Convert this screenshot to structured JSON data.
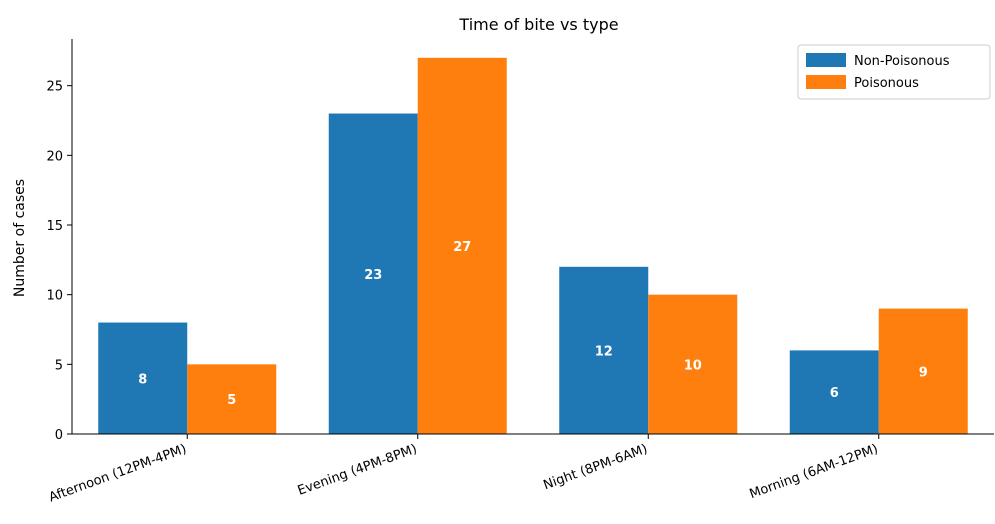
{
  "chart_data": {
    "type": "bar",
    "title": "Time of bite vs type",
    "xlabel": "",
    "ylabel": "Number of cases",
    "categories": [
      "Afternoon (12PM-4PM)",
      "Evening (4PM-8PM)",
      "Night (8PM-6AM)",
      "Morning (6AM-12PM)"
    ],
    "series": [
      {
        "name": "Non-Poisonous",
        "values": [
          8,
          23,
          12,
          6
        ],
        "color": "#1f77b4"
      },
      {
        "name": "Poisonous",
        "values": [
          5,
          27,
          10,
          9
        ],
        "color": "#ff7f0e"
      }
    ],
    "ylim": [
      0,
      28.35
    ],
    "yticks": [
      0,
      5,
      10,
      15,
      20,
      25
    ],
    "grid": false,
    "legend_position": "top-right",
    "bar_label_color": "#ffffff"
  }
}
